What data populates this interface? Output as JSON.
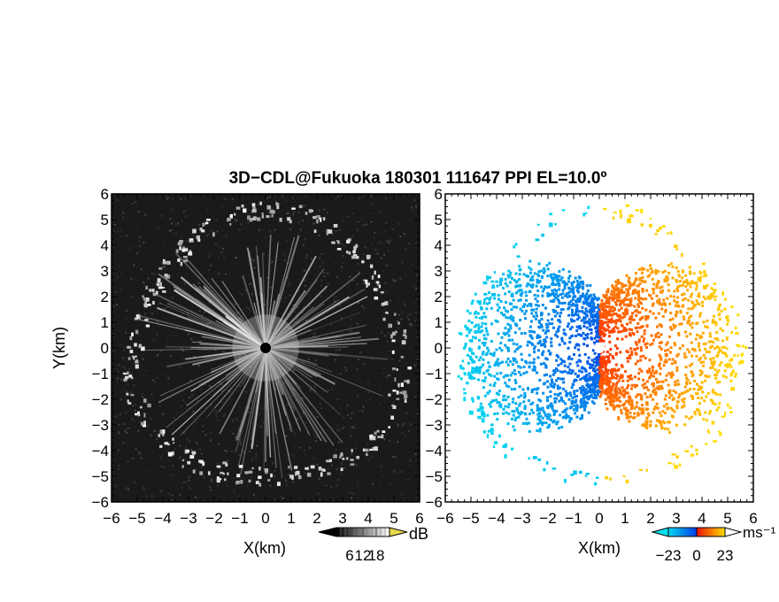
{
  "title": "3D−CDL@Fukuoka 180301 111647 PPI EL=10.0º",
  "colors": {
    "panel_background_left": "#1a1a1a",
    "panel_background_right": "#ffffff",
    "center_marker_left": "#000000",
    "center_marker_right": "#ffffff"
  },
  "chart_data": [
    {
      "type": "heatmap",
      "name": "reflectivity",
      "title": "",
      "xlabel": "X(km)",
      "ylabel": "Y(km)",
      "xlim": [
        -6,
        6
      ],
      "ylim": [
        -6,
        6
      ],
      "x_ticks": [
        "−6",
        "−5",
        "−4",
        "−3",
        "−2",
        "−1",
        "0",
        "1",
        "2",
        "3",
        "4",
        "5",
        "6"
      ],
      "y_ticks": [
        "6",
        "5",
        "4",
        "3",
        "2",
        "1",
        "0",
        "−1",
        "−2",
        "−3",
        "−4",
        "−5",
        "−6"
      ],
      "colorbar": {
        "unit": "dB",
        "tick_labels": [
          "6",
          "12",
          "18"
        ],
        "tick_values": [
          6,
          12,
          18
        ],
        "range": [
          0,
          24
        ],
        "colormap": "grayscale",
        "colors": [
          "#000000",
          "#ffffff"
        ],
        "over_color": "#e8d84a"
      },
      "features": {
        "radial_streaks": "bright radial lines emanating from the radar site at origin, strongest within ~3 km",
        "ring_radius_km": 5.2,
        "ring_description": "broken ring of bright echoes at roughly 5–5.5 km range"
      }
    },
    {
      "type": "heatmap",
      "name": "doppler_velocity",
      "title": "",
      "xlabel": "X(km)",
      "ylabel": "",
      "xlim": [
        -6,
        6
      ],
      "ylim": [
        -6,
        6
      ],
      "x_ticks": [
        "−6",
        "−5",
        "−4",
        "−3",
        "−2",
        "−1",
        "0",
        "1",
        "2",
        "3",
        "4",
        "5",
        "6"
      ],
      "y_ticks": [
        "6",
        "5",
        "4",
        "3",
        "2",
        "1",
        "0",
        "−1",
        "−2",
        "−3",
        "−4",
        "−5",
        "−6"
      ],
      "colorbar": {
        "unit": "ms⁻¹",
        "tick_labels": [
          "−23",
          "0",
          "23"
        ],
        "tick_values": [
          -23,
          0,
          23
        ],
        "range": [
          -23,
          23
        ],
        "colormap": "diverging",
        "colors": [
          "#00d8f0",
          "#0048e8",
          "#ff2a00",
          "#ffe000"
        ]
      },
      "features": {
        "negative_side": "west (x < 0): blue to cyan, magnitude increasing outward",
        "positive_side": "east (x > 0): red to yellow, magnitude increasing outward",
        "ring_radius_km": 5.2
      }
    }
  ]
}
